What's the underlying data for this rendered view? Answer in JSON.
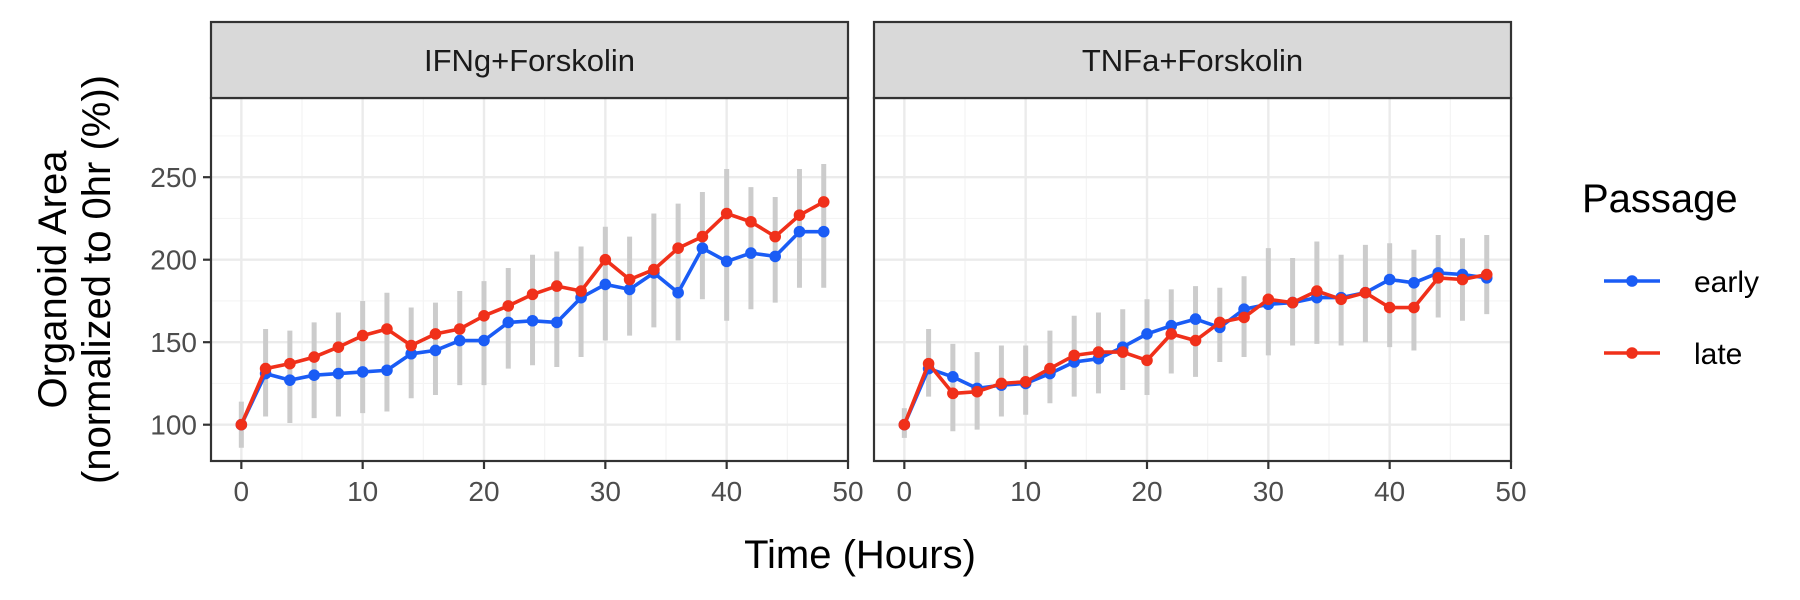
{
  "chart_data": {
    "type": "line",
    "xlabel": "Time (Hours)",
    "ylabel": [
      "Organoid Area",
      "(normalized to 0hr (%))"
    ],
    "xlim": [
      -2.5,
      50
    ],
    "ylim": [
      78,
      298
    ],
    "x_ticks": [
      0,
      10,
      20,
      30,
      40,
      50
    ],
    "y_ticks": [
      100,
      150,
      200,
      250
    ],
    "grid": true,
    "legend": {
      "title": "Passage",
      "position": "right",
      "entries": [
        {
          "label": "early",
          "color": "#1a5cf5"
        },
        {
          "label": "late",
          "color": "#f0301a"
        }
      ]
    },
    "panels": [
      {
        "title": "IFNg+Forskolin",
        "x": [
          0,
          2,
          4,
          6,
          8,
          10,
          12,
          14,
          16,
          18,
          20,
          22,
          24,
          26,
          28,
          30,
          32,
          34,
          36,
          38,
          40,
          42,
          44,
          46,
          48
        ],
        "series": [
          {
            "name": "early",
            "color": "#1a5cf5",
            "values": [
              100,
              131,
              127,
              130,
              131,
              132,
              133,
              143,
              145,
              151,
              151,
              162,
              163,
              162,
              177,
              185,
              182,
              192,
              180,
              207,
              199,
              204,
              202,
              217,
              217
            ]
          },
          {
            "name": "late",
            "color": "#f0301a",
            "values": [
              100,
              134,
              137,
              141,
              147,
              154,
              158,
              148,
              155,
              158,
              166,
              172,
              179,
              184,
              181,
              200,
              188,
              194,
              207,
              214,
              228,
              223,
              214,
              227,
              235
            ]
          }
        ],
        "error_bars": {
          "low": [
            86,
            105,
            101,
            104,
            105,
            107,
            108,
            116,
            118,
            124,
            124,
            134,
            136,
            135,
            141,
            151,
            154,
            159,
            151,
            176,
            163,
            170,
            174,
            183,
            183
          ],
          "high": [
            114,
            158,
            157,
            162,
            168,
            175,
            180,
            171,
            174,
            181,
            187,
            195,
            203,
            205,
            208,
            220,
            214,
            228,
            234,
            241,
            255,
            244,
            238,
            255,
            258
          ]
        }
      },
      {
        "title": "TNFa+Forskolin",
        "x": [
          0,
          2,
          4,
          6,
          8,
          10,
          12,
          14,
          16,
          18,
          20,
          22,
          24,
          26,
          28,
          30,
          32,
          34,
          36,
          38,
          40,
          42,
          44,
          46,
          48
        ],
        "series": [
          {
            "name": "early",
            "color": "#1a5cf5",
            "values": [
              100,
              134,
              129,
              122,
              124,
              125,
              131,
              138,
              140,
              147,
              155,
              160,
              164,
              159,
              170,
              173,
              174,
              177,
              177,
              180,
              188,
              186,
              192,
              191,
              189
            ]
          },
          {
            "name": "late",
            "color": "#f0301a",
            "values": [
              100,
              137,
              119,
              120,
              125,
              126,
              134,
              142,
              144,
              144,
              139,
              155,
              151,
              162,
              165,
              176,
              174,
              181,
              176,
              180,
              171,
              171,
              189,
              188,
              191
            ]
          }
        ],
        "error_bars": {
          "low": [
            92,
            117,
            96,
            97,
            105,
            106,
            113,
            117,
            119,
            121,
            118,
            131,
            129,
            138,
            141,
            142,
            148,
            149,
            148,
            150,
            147,
            145,
            165,
            163,
            167
          ],
          "high": [
            110,
            158,
            149,
            144,
            148,
            148,
            157,
            166,
            168,
            170,
            176,
            182,
            184,
            183,
            190,
            207,
            201,
            211,
            203,
            209,
            210,
            206,
            215,
            213,
            215
          ]
        }
      }
    ]
  }
}
